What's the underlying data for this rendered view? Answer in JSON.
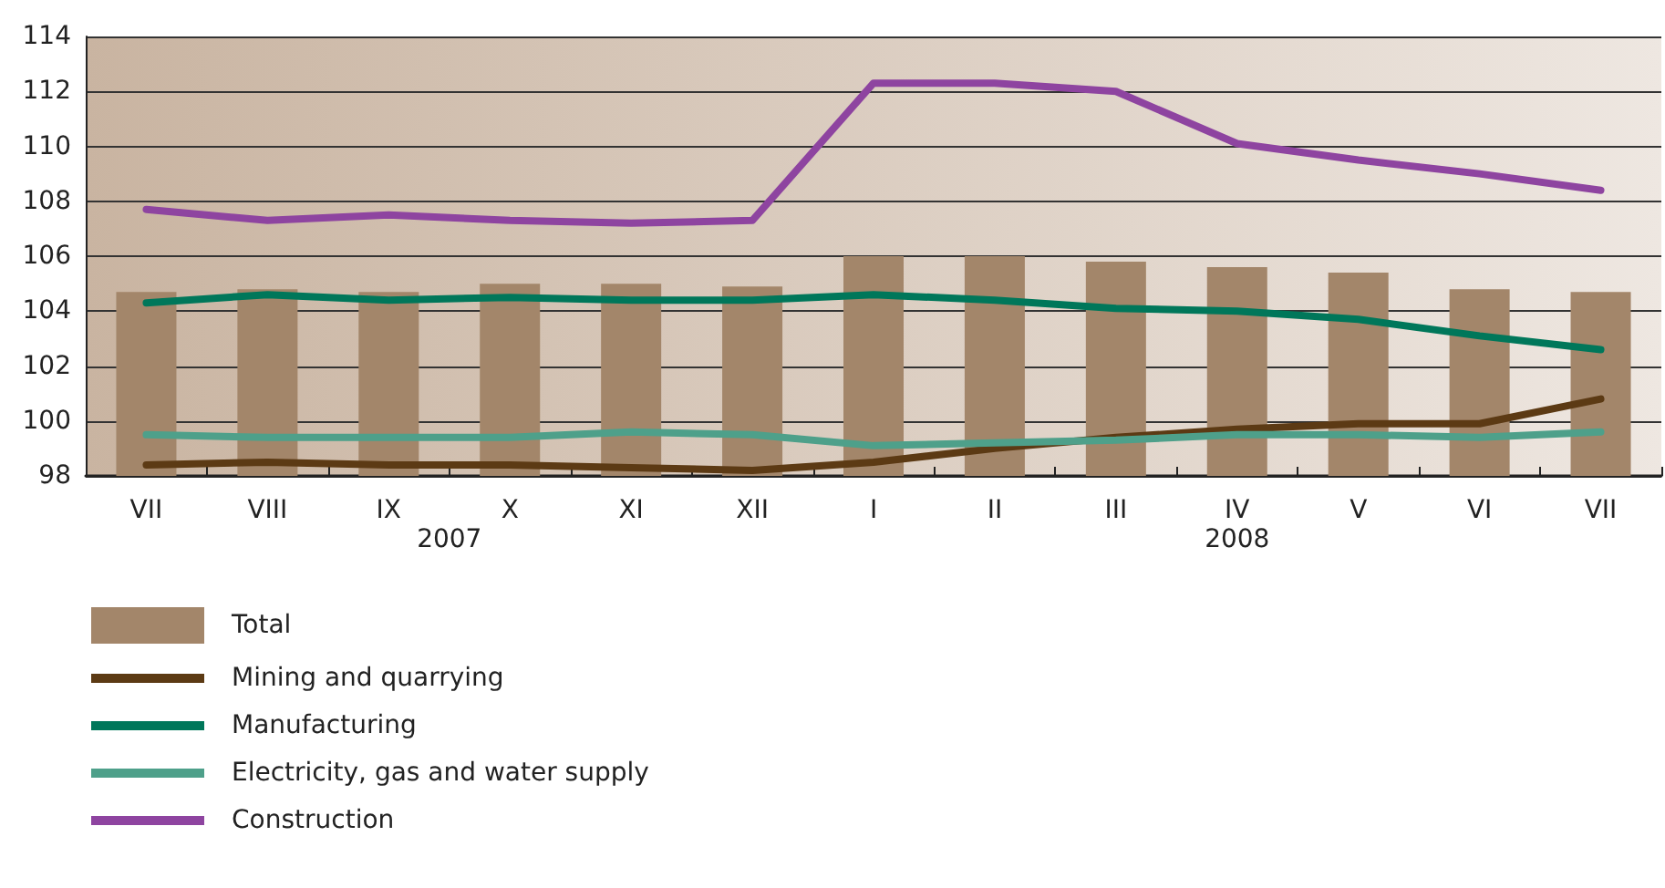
{
  "chart_data": {
    "type": "bar",
    "categories": [
      "VII",
      "VIII",
      "IX",
      "X",
      "XI",
      "XII",
      "I",
      "II",
      "III",
      "IV",
      "V",
      "VI",
      "VII"
    ],
    "series": [
      {
        "name": "Total",
        "color": "#a3866a",
        "values": [
          104.7,
          104.8,
          104.7,
          105.0,
          105.0,
          104.9,
          106.0,
          106.0,
          105.8,
          105.6,
          105.4,
          104.8,
          104.7
        ]
      },
      {
        "name": "Mining and quarrying",
        "type": "line",
        "color": "#5c3a14",
        "values": [
          98.4,
          98.5,
          98.4,
          98.4,
          98.3,
          98.2,
          98.5,
          99.0,
          99.4,
          99.7,
          99.9,
          99.9,
          100.8
        ]
      },
      {
        "name": "Manufacturing",
        "type": "line",
        "color": "#00775a",
        "values": [
          104.3,
          104.6,
          104.4,
          104.5,
          104.4,
          104.4,
          104.6,
          104.4,
          104.1,
          104.0,
          103.7,
          103.1,
          102.6
        ]
      },
      {
        "name": "Electricity, gas and water supply",
        "type": "line",
        "color": "#4ea08a",
        "values": [
          99.5,
          99.4,
          99.4,
          99.4,
          99.6,
          99.5,
          99.1,
          99.2,
          99.3,
          99.5,
          99.5,
          99.4,
          99.6
        ]
      },
      {
        "name": "Construction",
        "type": "line",
        "color": "#8e44a0",
        "values": [
          107.7,
          107.3,
          107.5,
          107.3,
          107.2,
          107.3,
          112.3,
          112.3,
          112.0,
          110.1,
          109.5,
          109.0,
          108.4
        ]
      }
    ],
    "annotations": [
      "2007",
      "2008"
    ],
    "ylim": [
      98,
      114
    ],
    "yticks": [
      98,
      100,
      102,
      104,
      106,
      108,
      110,
      112,
      114
    ],
    "grid": "y",
    "legend": "bottom",
    "marker": "none",
    "line_style": "solid"
  }
}
